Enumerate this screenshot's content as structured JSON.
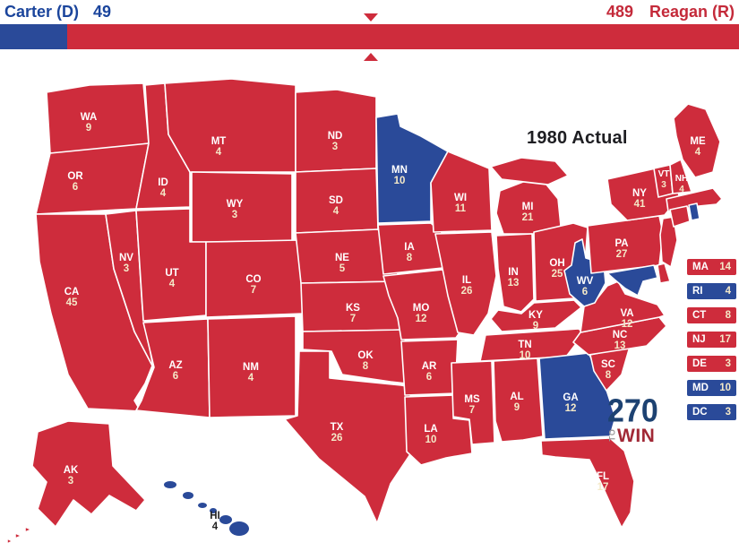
{
  "header": {
    "dem_candidate": "Carter (D)",
    "dem_ev": "49",
    "rep_ev": "489",
    "rep_candidate": "Reagan (R)",
    "threshold_ev": 270
  },
  "map": {
    "title": "1980 Actual"
  },
  "logo": {
    "number": "270",
    "to": "TO",
    "win": "WIN"
  },
  "colors": {
    "republican": "#CE2C3C",
    "democrat": "#2A4A99",
    "header_dem_text": "#1B459C",
    "header_rep_text": "#C42A3A",
    "state_abbr_label": "#FFFFFF",
    "state_ev_label": "#F4E9C8",
    "dark_island_label": "#222222",
    "title_text": "#1E1E22",
    "logo_navy": "#1D4272",
    "logo_red": "#A12936",
    "logo_gray": "#9A9A9A",
    "state_border": "#FFFFFF"
  },
  "states": [
    {
      "abbr": "WA",
      "ev": 9,
      "party": "R"
    },
    {
      "abbr": "OR",
      "ev": 6,
      "party": "R"
    },
    {
      "abbr": "CA",
      "ev": 45,
      "party": "R"
    },
    {
      "abbr": "NV",
      "ev": 3,
      "party": "R"
    },
    {
      "abbr": "ID",
      "ev": 4,
      "party": "R"
    },
    {
      "abbr": "MT",
      "ev": 4,
      "party": "R"
    },
    {
      "abbr": "WY",
      "ev": 3,
      "party": "R"
    },
    {
      "abbr": "UT",
      "ev": 4,
      "party": "R"
    },
    {
      "abbr": "CO",
      "ev": 7,
      "party": "R"
    },
    {
      "abbr": "AZ",
      "ev": 6,
      "party": "R"
    },
    {
      "abbr": "NM",
      "ev": 4,
      "party": "R"
    },
    {
      "abbr": "ND",
      "ev": 3,
      "party": "R"
    },
    {
      "abbr": "SD",
      "ev": 4,
      "party": "R"
    },
    {
      "abbr": "NE",
      "ev": 5,
      "party": "R"
    },
    {
      "abbr": "KS",
      "ev": 7,
      "party": "R"
    },
    {
      "abbr": "OK",
      "ev": 8,
      "party": "R"
    },
    {
      "abbr": "TX",
      "ev": 26,
      "party": "R"
    },
    {
      "abbr": "MN",
      "ev": 10,
      "party": "D"
    },
    {
      "abbr": "IA",
      "ev": 8,
      "party": "R"
    },
    {
      "abbr": "MO",
      "ev": 12,
      "party": "R"
    },
    {
      "abbr": "AR",
      "ev": 6,
      "party": "R"
    },
    {
      "abbr": "LA",
      "ev": 10,
      "party": "R"
    },
    {
      "abbr": "WI",
      "ev": 11,
      "party": "R"
    },
    {
      "abbr": "IL",
      "ev": 26,
      "party": "R"
    },
    {
      "abbr": "MS",
      "ev": 7,
      "party": "R"
    },
    {
      "abbr": "MI",
      "ev": 21,
      "party": "R"
    },
    {
      "abbr": "IN",
      "ev": 13,
      "party": "R"
    },
    {
      "abbr": "OH",
      "ev": 25,
      "party": "R"
    },
    {
      "abbr": "KY",
      "ev": 9,
      "party": "R"
    },
    {
      "abbr": "TN",
      "ev": 10,
      "party": "R"
    },
    {
      "abbr": "AL",
      "ev": 9,
      "party": "R"
    },
    {
      "abbr": "GA",
      "ev": 12,
      "party": "D"
    },
    {
      "abbr": "FL",
      "ev": 17,
      "party": "R"
    },
    {
      "abbr": "SC",
      "ev": 8,
      "party": "R"
    },
    {
      "abbr": "NC",
      "ev": 13,
      "party": "R"
    },
    {
      "abbr": "VA",
      "ev": 12,
      "party": "R"
    },
    {
      "abbr": "WV",
      "ev": 6,
      "party": "D"
    },
    {
      "abbr": "PA",
      "ev": 27,
      "party": "R"
    },
    {
      "abbr": "NY",
      "ev": 41,
      "party": "R"
    },
    {
      "abbr": "NJ",
      "ev": 17,
      "party": "R"
    },
    {
      "abbr": "VT",
      "ev": 3,
      "party": "R"
    },
    {
      "abbr": "NH",
      "ev": 4,
      "party": "R"
    },
    {
      "abbr": "ME",
      "ev": 4,
      "party": "R"
    },
    {
      "abbr": "MA",
      "ev": 14,
      "party": "R"
    },
    {
      "abbr": "CT",
      "ev": 8,
      "party": "R"
    },
    {
      "abbr": "RI",
      "ev": 4,
      "party": "D"
    },
    {
      "abbr": "DE",
      "ev": 3,
      "party": "R"
    },
    {
      "abbr": "MD",
      "ev": 10,
      "party": "D"
    },
    {
      "abbr": "DC",
      "ev": 3,
      "party": "D"
    },
    {
      "abbr": "AK",
      "ev": 3,
      "party": "R"
    },
    {
      "abbr": "HI",
      "ev": 4,
      "party": "D"
    }
  ],
  "small_states_list_order": [
    "MA",
    "RI",
    "CT",
    "NJ",
    "DE",
    "MD",
    "DC"
  ]
}
